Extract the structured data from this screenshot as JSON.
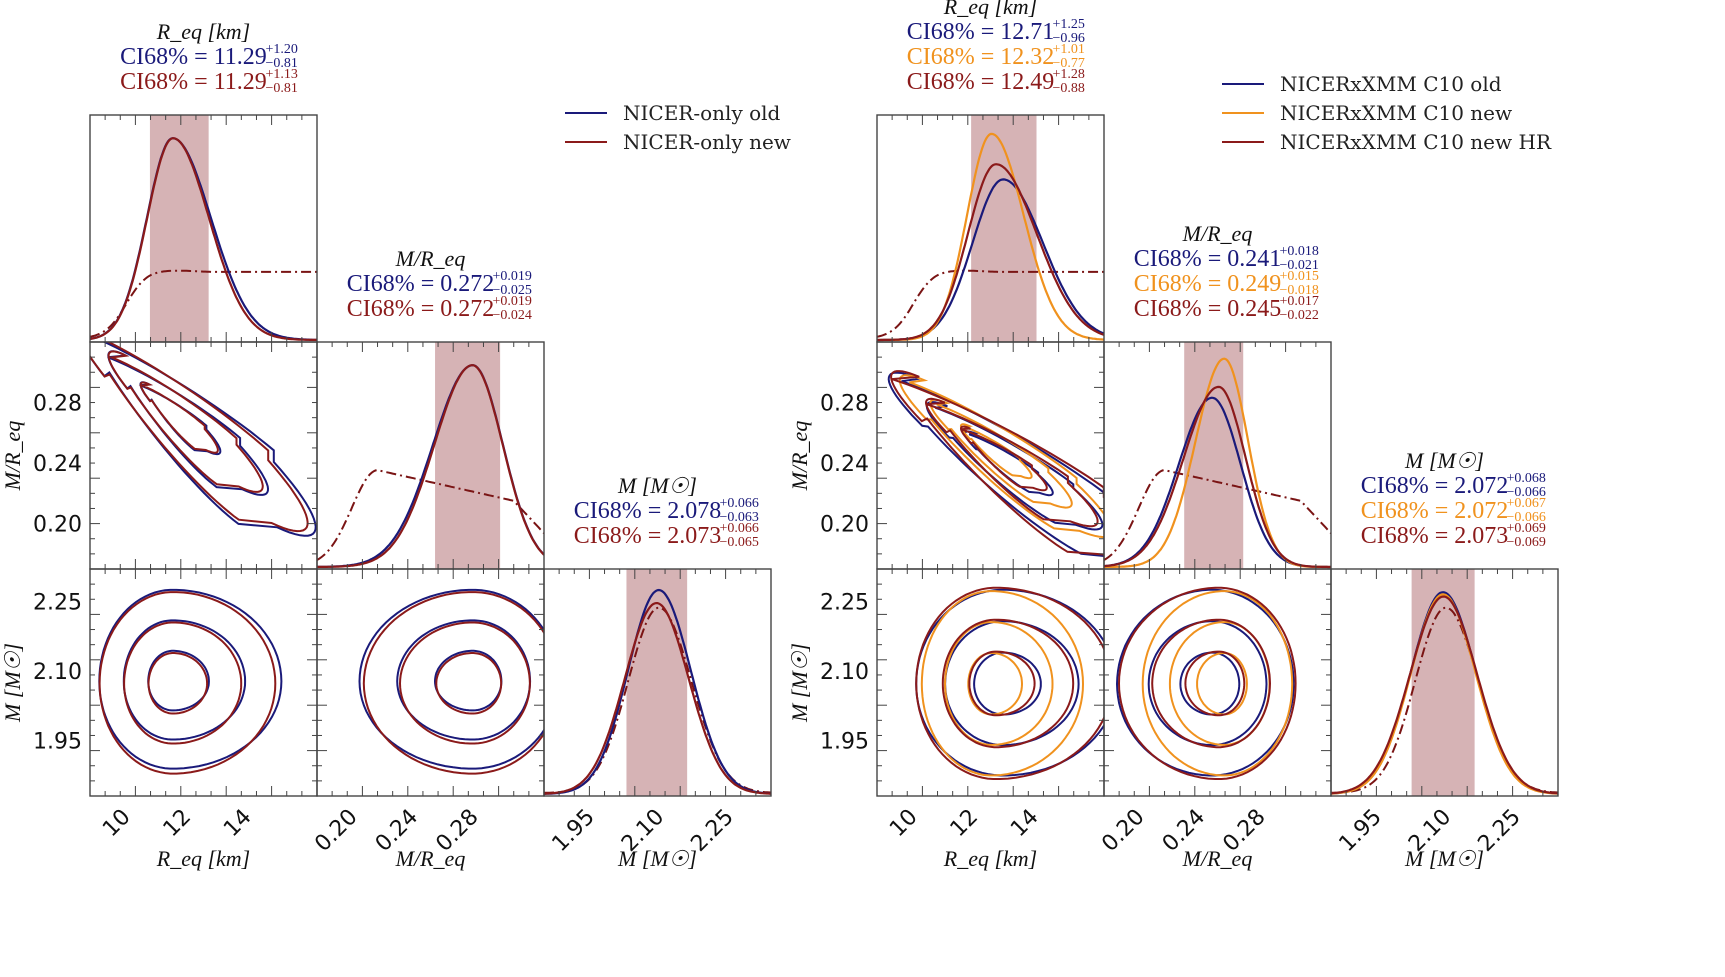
{
  "chart_data": {
    "type": "corner",
    "panels": [
      {
        "name": "left",
        "legend": {
          "placement": "top-right",
          "entries": [
            {
              "label": "NICER-only old",
              "color": "#1a1a7a"
            },
            {
              "label": "NICER-only new",
              "color": "#8b1a1a"
            }
          ]
        },
        "series": [
          {
            "name": "NICER-only old",
            "color": "#1a1a7a"
          },
          {
            "name": "NICER-only new",
            "color": "#8b1a1a"
          }
        ],
        "parameters": [
          {
            "key": "Req",
            "title": "R_eq [km]",
            "xlabel": "R_eq [km]",
            "ylabel": "",
            "range": [
              8.5,
              16.0
            ],
            "ticks": [
              "10",
              "12",
              "14"
            ],
            "tick_values": [
              10,
              12,
              14
            ],
            "ci": [
              {
                "series": "NICER-only old",
                "text": "CI68% = 11.29",
                "median": 11.29,
                "plus": "+1.20",
                "minus": "−0.81",
                "color": "#1a1a7a"
              },
              {
                "series": "NICER-only new",
                "text": "CI68% = 11.29",
                "median": 11.29,
                "plus": "+1.13",
                "minus": "−0.81",
                "color": "#8b1a1a"
              }
            ],
            "band": [
              10.48,
              12.42
            ],
            "peak": 11.1,
            "sigma_lo": 0.75,
            "sigma_hi": 1.25,
            "prior": "flat-from-10.5"
          },
          {
            "key": "MR",
            "title": "M/R_eq",
            "xlabel": "M/R_eq",
            "ylabel": "M/R_eq",
            "range": [
              0.17,
              0.32
            ],
            "ticks": [
              "0.20",
              "0.24",
              "0.28"
            ],
            "tick_values": [
              0.2,
              0.24,
              0.28
            ],
            "ci": [
              {
                "series": "NICER-only old",
                "text": "CI68% = 0.272",
                "median": 0.272,
                "plus": "+0.019",
                "minus": "−0.025",
                "color": "#1a1a7a"
              },
              {
                "series": "NICER-only new",
                "text": "CI68% = 0.272",
                "median": 0.272,
                "plus": "+0.019",
                "minus": "−0.024",
                "color": "#8b1a1a"
              }
            ],
            "band": [
              0.248,
              0.291
            ],
            "peak": 0.275,
            "sigma_lo": 0.026,
            "sigma_hi": 0.015,
            "prior": "peak-0.21-decay"
          },
          {
            "key": "M",
            "title": "M [M☉]",
            "xlabel": "M [M☉]",
            "ylabel": "M [M☉]",
            "range": [
              1.83,
              2.32
            ],
            "ticks": [
              "1.95",
              "2.10",
              "2.25"
            ],
            "tick_values": [
              1.95,
              2.1,
              2.25
            ],
            "ci": [
              {
                "series": "NICER-only old",
                "text": "CI68% = 2.078",
                "median": 2.078,
                "plus": "+0.066",
                "minus": "−0.063",
                "color": "#1a1a7a"
              },
              {
                "series": "NICER-only new",
                "text": "CI68% = 2.073",
                "median": 2.073,
                "plus": "+0.066",
                "minus": "−0.065",
                "color": "#8b1a1a"
              }
            ],
            "band": [
              2.008,
              2.139
            ],
            "peak": 2.075,
            "sigma_lo": 0.065,
            "sigma_hi": 0.065,
            "prior": "gaussian"
          }
        ]
      },
      {
        "name": "right",
        "legend": {
          "placement": "top-right",
          "entries": [
            {
              "label": "NICERxXMM C10 old",
              "color": "#1a1a7a"
            },
            {
              "label": "NICERxXMM C10 new",
              "color": "#f0921e"
            },
            {
              "label": "NICERxXMM C10 new HR",
              "color": "#8b1a1a"
            }
          ]
        },
        "series": [
          {
            "name": "NICERxXMM C10 old",
            "color": "#1a1a7a"
          },
          {
            "name": "NICERxXMM C10 new",
            "color": "#f0921e"
          },
          {
            "name": "NICERxXMM C10 new HR",
            "color": "#8b1a1a"
          }
        ],
        "parameters": [
          {
            "key": "Req",
            "title": "R_eq [km]",
            "xlabel": "R_eq [km]",
            "ylabel": "",
            "range": [
              8.5,
              16.0
            ],
            "ticks": [
              "10",
              "12",
              "14"
            ],
            "tick_values": [
              10,
              12,
              14
            ],
            "ci": [
              {
                "series": "NICERxXMM C10 old",
                "text": "CI68% = 12.71",
                "median": 12.71,
                "plus": "+1.25",
                "minus": "−0.96",
                "color": "#1a1a7a"
              },
              {
                "series": "NICERxXMM C10 new",
                "text": "CI68% = 12.32",
                "median": 12.32,
                "plus": "+1.01",
                "minus": "−0.77",
                "color": "#f0921e"
              },
              {
                "series": "NICERxXMM C10 new HR",
                "text": "CI68% = 12.49",
                "median": 12.49,
                "plus": "+1.28",
                "minus": "−0.88",
                "color": "#8b1a1a"
              }
            ],
            "band": [
              11.61,
              13.77
            ],
            "prior": "flat-from-10.5"
          },
          {
            "key": "MR",
            "title": "M/R_eq",
            "xlabel": "M/R_eq",
            "ylabel": "M/R_eq",
            "range": [
              0.17,
              0.32
            ],
            "ticks": [
              "0.20",
              "0.24",
              "0.28"
            ],
            "tick_values": [
              0.2,
              0.24,
              0.28
            ],
            "ci": [
              {
                "series": "NICERxXMM C10 old",
                "text": "CI68% = 0.241",
                "median": 0.241,
                "plus": "+0.018",
                "minus": "−0.021",
                "color": "#1a1a7a"
              },
              {
                "series": "NICERxXMM C10 new",
                "text": "CI68% = 0.249",
                "median": 0.249,
                "plus": "+0.015",
                "minus": "−0.018",
                "color": "#f0921e"
              },
              {
                "series": "NICERxXMM C10 new HR",
                "text": "CI68% = 0.245",
                "median": 0.245,
                "plus": "+0.017",
                "minus": "−0.022",
                "color": "#8b1a1a"
              }
            ],
            "band": [
              0.223,
              0.262
            ],
            "prior": "peak-0.21-decay"
          },
          {
            "key": "M",
            "title": "M [M☉]",
            "xlabel": "M [M☉]",
            "ylabel": "M [M☉]",
            "range": [
              1.83,
              2.32
            ],
            "ticks": [
              "1.95",
              "2.10",
              "2.25"
            ],
            "tick_values": [
              1.95,
              2.1,
              2.25
            ],
            "ci": [
              {
                "series": "NICERxXMM C10 old",
                "text": "CI68% = 2.072",
                "median": 2.072,
                "plus": "+0.068",
                "minus": "−0.066",
                "color": "#1a1a7a"
              },
              {
                "series": "NICERxXMM C10 new",
                "text": "CI68% = 2.072",
                "median": 2.072,
                "plus": "+0.067",
                "minus": "−0.066",
                "color": "#f0921e"
              },
              {
                "series": "NICERxXMM C10 new HR",
                "text": "CI68% = 2.073",
                "median": 2.073,
                "plus": "+0.069",
                "minus": "−0.069",
                "color": "#8b1a1a"
              }
            ],
            "band": [
              2.004,
              2.14
            ],
            "prior": "gaussian"
          }
        ]
      }
    ],
    "band_color": "#d6b3b5",
    "prior_style": "dash-dot",
    "contour_levels": [
      "inner",
      "middle",
      "outer"
    ]
  }
}
